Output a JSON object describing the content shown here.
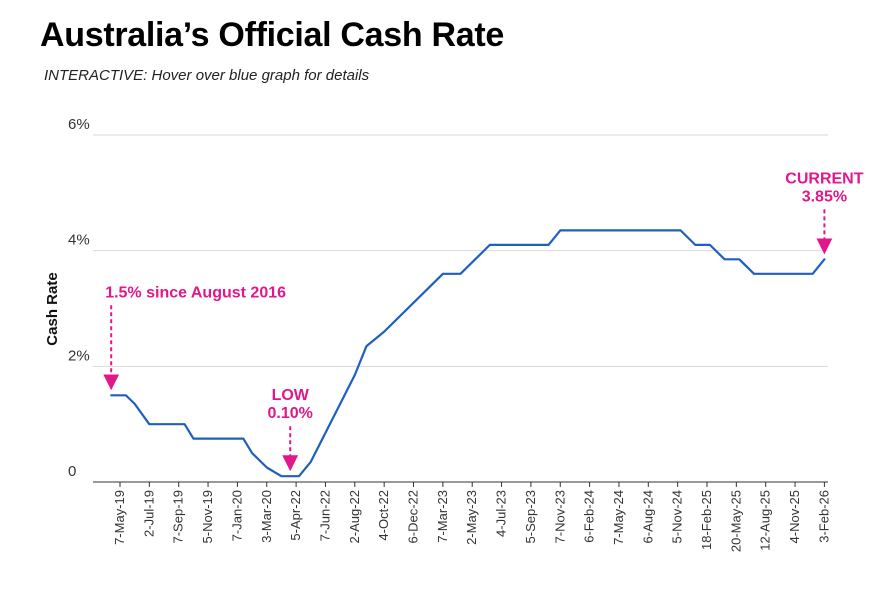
{
  "header": {
    "title": "Australia’s Official Cash Rate",
    "subtitle": "INTERACTIVE: Hover over blue graph for details"
  },
  "colors": {
    "line": "#1f5fbf",
    "annotation": "#e0188c",
    "grid": "#d9d9d9",
    "axis": "#333333"
  },
  "chart_data": {
    "type": "line",
    "title": "Australia’s Official Cash Rate",
    "xlabel": "",
    "ylabel": "Cash Rate",
    "ylim": [
      0,
      6
    ],
    "y_ticks": [
      {
        "value": 0,
        "label": "0"
      },
      {
        "value": 2,
        "label": "2%"
      },
      {
        "value": 4,
        "label": "4%"
      },
      {
        "value": 6,
        "label": "6%"
      }
    ],
    "x_tick_labels": [
      "7-May-19",
      "2-Jul-19",
      "7-Sep-19",
      "5-Nov-19",
      "7-Jan-20",
      "3-Mar-20",
      "5-Apr-22",
      "7-Jun-22",
      "2-Aug-22",
      "4-Oct-22",
      "6-Dec-22",
      "7-Mar-23",
      "2-May-23",
      "4-Jul-23",
      "5-Sep-23",
      "7-Nov-23",
      "6-Feb-24",
      "7-May-24",
      "6-Aug-24",
      "5-Nov-24",
      "18-Feb-25",
      "20-May-25",
      "12-Aug-25",
      "4-Nov-25",
      "3-Feb-26"
    ],
    "series": [
      {
        "name": "Cash Rate",
        "points": [
          {
            "x": -0.3,
            "y": 1.5
          },
          {
            "x": 0.0,
            "y": 1.5
          },
          {
            "x": 0.2,
            "y": 1.5
          },
          {
            "x": 0.5,
            "y": 1.35
          },
          {
            "x": 1.0,
            "y": 1.0
          },
          {
            "x": 2.0,
            "y": 1.0
          },
          {
            "x": 2.2,
            "y": 1.0
          },
          {
            "x": 2.5,
            "y": 0.75
          },
          {
            "x": 4.2,
            "y": 0.75
          },
          {
            "x": 4.5,
            "y": 0.5
          },
          {
            "x": 5.0,
            "y": 0.25
          },
          {
            "x": 5.5,
            "y": 0.1
          },
          {
            "x": 6.1,
            "y": 0.1
          },
          {
            "x": 6.5,
            "y": 0.35
          },
          {
            "x": 8.0,
            "y": 1.85
          },
          {
            "x": 8.4,
            "y": 2.35
          },
          {
            "x": 9.0,
            "y": 2.6
          },
          {
            "x": 10.5,
            "y": 3.35
          },
          {
            "x": 11.0,
            "y": 3.6
          },
          {
            "x": 11.6,
            "y": 3.6
          },
          {
            "x": 12.3,
            "y": 3.95
          },
          {
            "x": 12.6,
            "y": 4.1
          },
          {
            "x": 14.6,
            "y": 4.1
          },
          {
            "x": 15.0,
            "y": 4.35
          },
          {
            "x": 19.1,
            "y": 4.35
          },
          {
            "x": 19.6,
            "y": 4.1
          },
          {
            "x": 20.1,
            "y": 4.1
          },
          {
            "x": 20.6,
            "y": 3.85
          },
          {
            "x": 21.1,
            "y": 3.85
          },
          {
            "x": 21.6,
            "y": 3.6
          },
          {
            "x": 23.6,
            "y": 3.6
          },
          {
            "x": 24.0,
            "y": 3.85
          }
        ]
      }
    ],
    "annotations": [
      {
        "lines": [
          "1.5% since August 2016"
        ],
        "x": -0.3,
        "y": 1.5,
        "label_pos": "above-right"
      },
      {
        "lines": [
          "LOW",
          "0.10%"
        ],
        "x": 5.8,
        "y": 0.1,
        "label_pos": "above"
      },
      {
        "lines": [
          "CURRENT",
          "3.85%"
        ],
        "x": 24.0,
        "y": 3.85,
        "label_pos": "above"
      }
    ],
    "grid": true
  }
}
